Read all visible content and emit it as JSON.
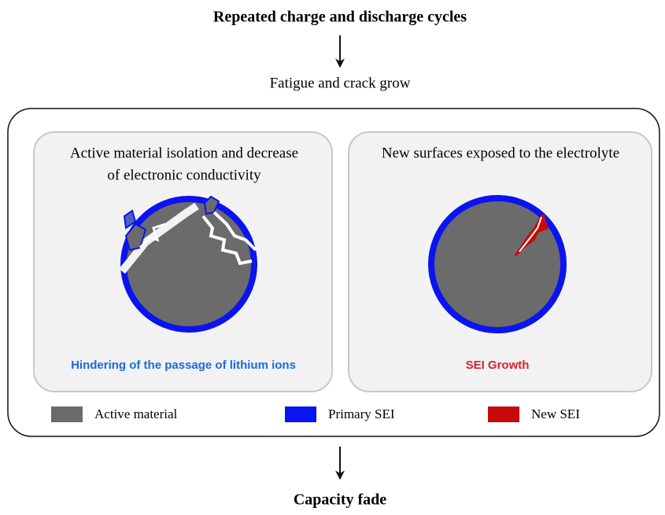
{
  "header": {
    "title": "Repeated charge and discharge cycles",
    "step": "Fatigue and crack grow"
  },
  "panels": [
    {
      "title_lines": [
        "Active material isolation and decrease",
        "of electronic conductivity"
      ],
      "caption": "Hindering of the passage of lithium ions",
      "caption_color": "#1a6be0"
    },
    {
      "title_lines": [
        "New surfaces exposed to the electrolyte"
      ],
      "caption": "SEI Growth",
      "caption_color": "#e0202a"
    }
  ],
  "legend": [
    {
      "label": "Active material",
      "color": "#6b6b6b"
    },
    {
      "label": "Primary SEI",
      "color": "#0a14f0"
    },
    {
      "label": "New SEI",
      "color": "#c80a0a"
    }
  ],
  "footer": "Capacity fade"
}
